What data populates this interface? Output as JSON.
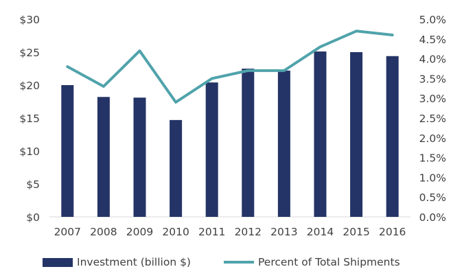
{
  "colors": {
    "bar": "#253466",
    "line": "#50A3AB",
    "axis": "#d9d9d9",
    "text": "#404040"
  },
  "chart_data": {
    "type": "bar+line",
    "categories": [
      "2007",
      "2008",
      "2009",
      "2010",
      "2011",
      "2012",
      "2013",
      "2014",
      "2015",
      "2016"
    ],
    "series": [
      {
        "name": "Investment (billion $)",
        "type": "bar",
        "axis": "left",
        "values": [
          20.0,
          18.2,
          18.1,
          14.7,
          20.4,
          22.5,
          22.2,
          25.1,
          25.0,
          24.4
        ]
      },
      {
        "name": "Percent of Total Shipments",
        "type": "line",
        "axis": "right",
        "values": [
          3.8,
          3.3,
          4.2,
          2.9,
          3.5,
          3.7,
          3.7,
          4.3,
          4.7,
          4.6
        ]
      }
    ],
    "y_left": {
      "min": 0,
      "max": 30,
      "ticks": [
        0,
        5,
        10,
        15,
        20,
        25,
        30
      ],
      "tick_labels": [
        "$0",
        "$5",
        "$10",
        "$15",
        "$20",
        "$25",
        "$30"
      ]
    },
    "y_right": {
      "min": 0,
      "max": 5,
      "ticks": [
        0,
        0.5,
        1,
        1.5,
        2,
        2.5,
        3,
        3.5,
        4,
        4.5,
        5
      ],
      "tick_labels": [
        "0.0%",
        "0.5%",
        "1.0%",
        "1.5%",
        "2.0%",
        "2.5%",
        "3.0%",
        "3.5%",
        "4.0%",
        "4.5%",
        "5.0%"
      ]
    },
    "legend": [
      "Investment (billion $)",
      "Percent of Total Shipments"
    ],
    "legend_position": "bottom",
    "grid": false
  }
}
